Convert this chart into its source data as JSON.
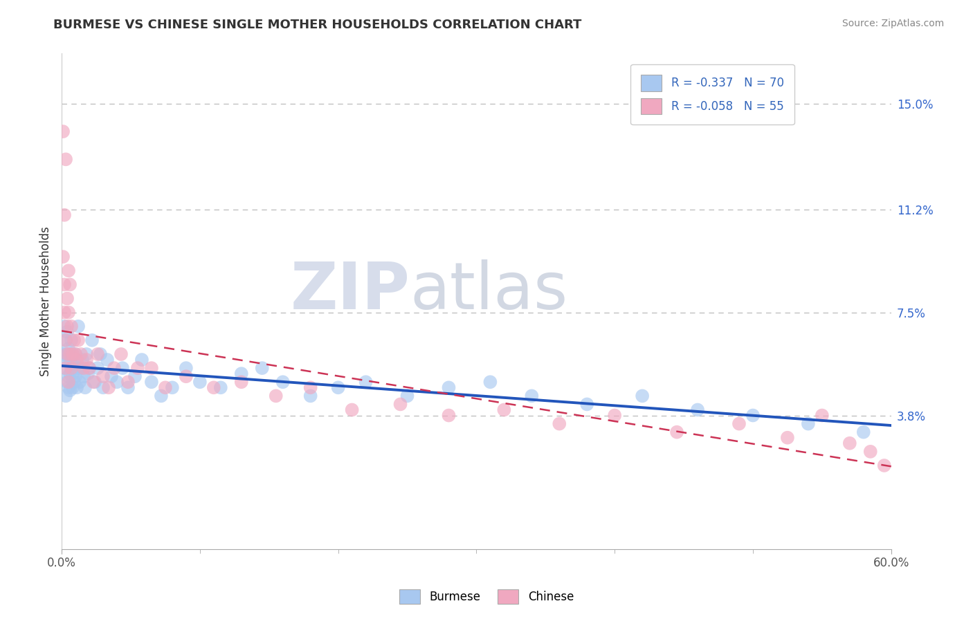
{
  "title": "BURMESE VS CHINESE SINGLE MOTHER HOUSEHOLDS CORRELATION CHART",
  "source": "Source: ZipAtlas.com",
  "ylabel": "Single Mother Households",
  "right_yticks": [
    "3.8%",
    "7.5%",
    "11.2%",
    "15.0%"
  ],
  "right_ytick_vals": [
    0.038,
    0.075,
    0.112,
    0.15
  ],
  "xmin": 0.0,
  "xmax": 0.6,
  "ymin": -0.01,
  "ymax": 0.168,
  "legend_labels": [
    "Burmese",
    "Chinese"
  ],
  "legend_r_vals": [
    "-0.337",
    "-0.058"
  ],
  "legend_n_vals": [
    "70",
    "55"
  ],
  "burmese_color": "#A8C8F0",
  "chinese_color": "#F0A8C0",
  "burmese_line_color": "#2255BB",
  "chinese_line_color": "#CC3355",
  "watermark_zip": "ZIP",
  "watermark_atlas": "atlas",
  "burmese_scatter_x": [
    0.001,
    0.002,
    0.002,
    0.003,
    0.003,
    0.003,
    0.004,
    0.004,
    0.004,
    0.005,
    0.005,
    0.005,
    0.006,
    0.006,
    0.006,
    0.007,
    0.007,
    0.007,
    0.008,
    0.008,
    0.008,
    0.009,
    0.009,
    0.01,
    0.01,
    0.011,
    0.012,
    0.012,
    0.013,
    0.014,
    0.015,
    0.016,
    0.017,
    0.018,
    0.019,
    0.02,
    0.022,
    0.024,
    0.026,
    0.028,
    0.03,
    0.033,
    0.036,
    0.04,
    0.044,
    0.048,
    0.053,
    0.058,
    0.065,
    0.072,
    0.08,
    0.09,
    0.1,
    0.115,
    0.13,
    0.145,
    0.16,
    0.18,
    0.2,
    0.22,
    0.25,
    0.28,
    0.31,
    0.34,
    0.38,
    0.42,
    0.46,
    0.5,
    0.54,
    0.58
  ],
  "burmese_scatter_y": [
    0.06,
    0.055,
    0.07,
    0.045,
    0.058,
    0.065,
    0.05,
    0.06,
    0.068,
    0.052,
    0.048,
    0.062,
    0.053,
    0.058,
    0.047,
    0.055,
    0.06,
    0.065,
    0.048,
    0.053,
    0.058,
    0.05,
    0.055,
    0.052,
    0.06,
    0.048,
    0.055,
    0.07,
    0.05,
    0.055,
    0.058,
    0.052,
    0.048,
    0.06,
    0.053,
    0.055,
    0.065,
    0.05,
    0.055,
    0.06,
    0.048,
    0.058,
    0.052,
    0.05,
    0.055,
    0.048,
    0.052,
    0.058,
    0.05,
    0.045,
    0.048,
    0.055,
    0.05,
    0.048,
    0.053,
    0.055,
    0.05,
    0.045,
    0.048,
    0.05,
    0.045,
    0.048,
    0.05,
    0.045,
    0.042,
    0.045,
    0.04,
    0.038,
    0.035,
    0.032
  ],
  "chinese_scatter_x": [
    0.001,
    0.001,
    0.002,
    0.002,
    0.002,
    0.003,
    0.003,
    0.003,
    0.004,
    0.004,
    0.004,
    0.005,
    0.005,
    0.005,
    0.006,
    0.006,
    0.007,
    0.007,
    0.008,
    0.009,
    0.01,
    0.011,
    0.012,
    0.014,
    0.016,
    0.018,
    0.02,
    0.023,
    0.026,
    0.03,
    0.034,
    0.038,
    0.043,
    0.048,
    0.055,
    0.065,
    0.075,
    0.09,
    0.11,
    0.13,
    0.155,
    0.18,
    0.21,
    0.245,
    0.28,
    0.32,
    0.36,
    0.4,
    0.445,
    0.49,
    0.525,
    0.55,
    0.57,
    0.585,
    0.595
  ],
  "chinese_scatter_y": [
    0.14,
    0.095,
    0.11,
    0.075,
    0.085,
    0.13,
    0.065,
    0.055,
    0.08,
    0.07,
    0.06,
    0.09,
    0.075,
    0.05,
    0.085,
    0.06,
    0.07,
    0.055,
    0.06,
    0.065,
    0.06,
    0.058,
    0.065,
    0.06,
    0.055,
    0.058,
    0.055,
    0.05,
    0.06,
    0.052,
    0.048,
    0.055,
    0.06,
    0.05,
    0.055,
    0.055,
    0.048,
    0.052,
    0.048,
    0.05,
    0.045,
    0.048,
    0.04,
    0.042,
    0.038,
    0.04,
    0.035,
    0.038,
    0.032,
    0.035,
    0.03,
    0.038,
    0.028,
    0.025,
    0.02
  ]
}
